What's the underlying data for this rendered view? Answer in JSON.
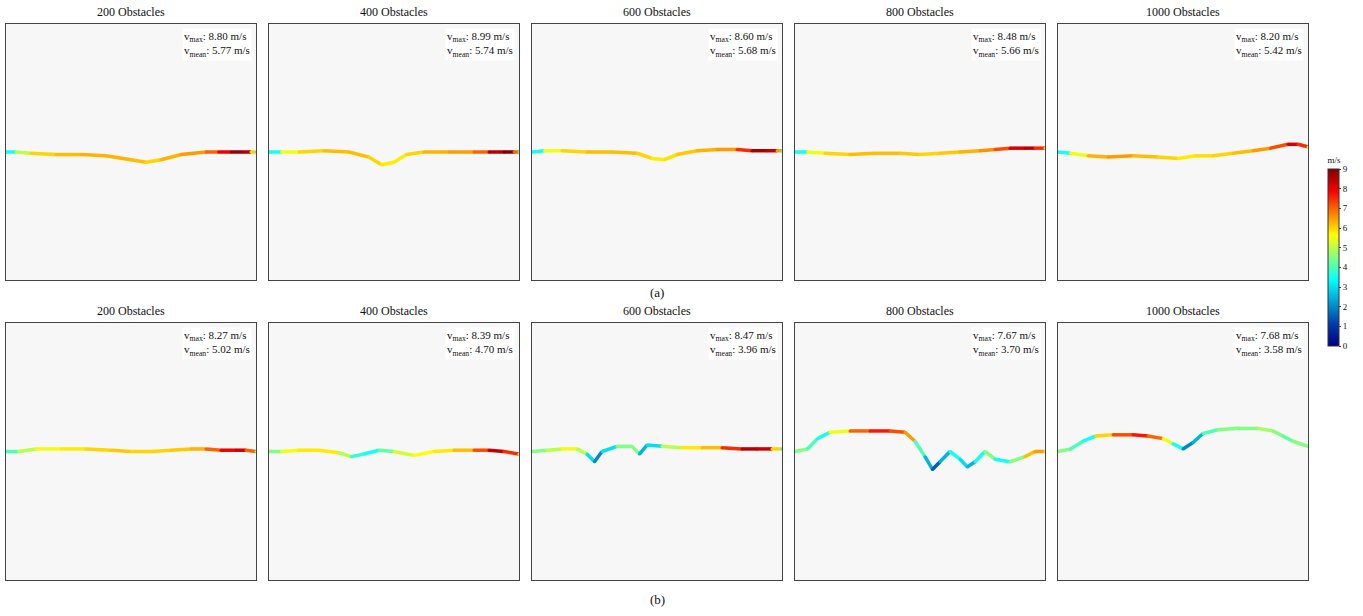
{
  "chart_data": {
    "type": "line",
    "tick_labels": false,
    "xlim": [
      0,
      100
    ],
    "ylim": [
      0,
      100
    ],
    "unit": "m/s",
    "colorbar": {
      "range": [
        0,
        9
      ],
      "ticks": [
        0,
        1,
        2,
        3,
        4,
        5,
        6,
        7,
        8,
        9
      ]
    },
    "rows": [
      {
        "label": "(a)",
        "panels": [
          {
            "title": "200 Obstacles",
            "stats": [
              {
                "symbol": "v",
                "subscript": "max",
                "value": 8.8,
                "label": "8.80"
              },
              {
                "symbol": "v",
                "subscript": "mean",
                "value": 5.77
              }
            ],
            "x": [
              0,
              4,
              10,
              20,
              30,
              40,
              50,
              56,
              62,
              70,
              80,
              85,
              90,
              95,
              98,
              100
            ],
            "y": [
              50,
              50,
              49.5,
              49,
              49,
              48.5,
              47,
              46,
              47,
              49,
              50,
              50,
              50,
              50,
              50,
              50
            ],
            "speed": [
              3.5,
              5,
              6,
              6.2,
              6.3,
              6.3,
              6.2,
              6,
              6.3,
              6.5,
              7,
              8,
              8.8,
              8.5,
              6,
              4
            ]
          },
          {
            "title": "400 Obstacles",
            "stats": [
              {
                "symbol": "v",
                "subscript": "max",
                "value": 8.99
              },
              {
                "symbol": "v",
                "subscript": "mean",
                "value": 5.74
              }
            ],
            "x": [
              0,
              5,
              12,
              22,
              32,
              40,
              45,
              50,
              55,
              62,
              72,
              82,
              88,
              94,
              98,
              100
            ],
            "y": [
              50,
              50,
              50,
              50.5,
              50,
              48,
              45,
              46,
              49,
              50,
              50,
              50,
              50,
              50,
              50,
              50
            ],
            "speed": [
              3.5,
              5.5,
              6,
              6.2,
              6.2,
              6,
              5.8,
              5.8,
              6,
              6.3,
              6.5,
              7,
              8.5,
              8.99,
              7,
              4
            ]
          },
          {
            "title": "600 Obstacles",
            "stats": [
              {
                "symbol": "v",
                "subscript": "max",
                "value": 8.6,
                "label": "8.60"
              },
              {
                "symbol": "v",
                "subscript": "mean",
                "value": 5.68
              }
            ],
            "x": [
              0,
              5,
              12,
              22,
              32,
              42,
              48,
              53,
              58,
              66,
              74,
              82,
              88,
              94,
              98,
              100
            ],
            "y": [
              50,
              50.5,
              50.5,
              50,
              50,
              49.5,
              47.5,
              47,
              49,
              50.5,
              51,
              51,
              50.5,
              50.5,
              50.5,
              50.5
            ],
            "speed": [
              3.5,
              5.5,
              6,
              6.2,
              6.2,
              6,
              5.8,
              5.9,
              6.1,
              6.3,
              6.5,
              7.5,
              8.6,
              8.4,
              6.5,
              4
            ]
          },
          {
            "title": "800 Obstacles",
            "stats": [
              {
                "symbol": "v",
                "subscript": "max",
                "value": 8.48
              },
              {
                "symbol": "v",
                "subscript": "mean",
                "value": 5.66
              }
            ],
            "x": [
              0,
              5,
              12,
              22,
              32,
              42,
              50,
              58,
              66,
              74,
              80,
              86,
              92,
              96,
              100
            ],
            "y": [
              50,
              50,
              49.5,
              49,
              49.5,
              49.5,
              49,
              49.5,
              50,
              50.5,
              51,
              51.5,
              51.5,
              51.5,
              51.5
            ],
            "speed": [
              3.5,
              5.5,
              6,
              6.2,
              6.2,
              6.1,
              6,
              6.1,
              6.3,
              6.6,
              7.2,
              8.2,
              8.48,
              7.5,
              5
            ]
          },
          {
            "title": "1000 Obstacles",
            "stats": [
              {
                "symbol": "v",
                "subscript": "max",
                "value": 8.2,
                "label": "8.20"
              },
              {
                "symbol": "v",
                "subscript": "mean",
                "value": 5.42
              }
            ],
            "x": [
              0,
              5,
              12,
              20,
              30,
              40,
              48,
              55,
              62,
              70,
              78,
              85,
              92,
              96,
              100
            ],
            "y": [
              50,
              49.5,
              48.5,
              48,
              48.5,
              48,
              47.5,
              48.5,
              48.5,
              49.5,
              50.5,
              51.5,
              53,
              53,
              52
            ],
            "speed": [
              3.5,
              5.5,
              6.3,
              6.5,
              6.2,
              6,
              5.8,
              5.9,
              6,
              6.2,
              6.5,
              7.2,
              8.2,
              7.5,
              5
            ]
          }
        ]
      },
      {
        "label": "(b)",
        "panels": [
          {
            "title": "200 Obstacles",
            "stats": [
              {
                "symbol": "v",
                "subscript": "max",
                "value": 8.27
              },
              {
                "symbol": "v",
                "subscript": "mean",
                "value": 5.02
              }
            ],
            "x": [
              0,
              5,
              12,
              22,
              32,
              42,
              50,
              58,
              66,
              74,
              80,
              86,
              92,
              96,
              100
            ],
            "y": [
              50,
              50,
              51,
              51,
              51,
              50.5,
              50,
              50,
              50.5,
              51,
              51,
              50.5,
              50.5,
              50.5,
              50
            ],
            "speed": [
              4,
              5,
              5.5,
              5.8,
              6,
              6.1,
              6,
              6,
              6.1,
              6.3,
              7,
              8,
              8.27,
              7,
              4.5
            ]
          },
          {
            "title": "400 Obstacles",
            "stats": [
              {
                "symbol": "v",
                "subscript": "max",
                "value": 8.39
              },
              {
                "symbol": "v",
                "subscript": "mean",
                "value": 4.7,
                "label": "4.70"
              }
            ],
            "x": [
              0,
              5,
              12,
              20,
              28,
              33,
              38,
              44,
              50,
              58,
              66,
              74,
              82,
              88,
              94,
              100
            ],
            "y": [
              50,
              50,
              50.5,
              50.5,
              49.5,
              48,
              49,
              50.5,
              50,
              48.5,
              50,
              50.5,
              50.5,
              50.5,
              50,
              49
            ],
            "speed": [
              4.5,
              5.5,
              5.8,
              5.8,
              5,
              3.8,
              3.5,
              4.2,
              5.2,
              5.6,
              5.8,
              6.2,
              7.2,
              8.39,
              7.5,
              5
            ]
          },
          {
            "title": "600 Obstacles",
            "stats": [
              {
                "symbol": "v",
                "subscript": "max",
                "value": 8.47
              },
              {
                "symbol": "v",
                "subscript": "mean",
                "value": 3.96
              }
            ],
            "x": [
              0,
              6,
              12,
              18,
              22,
              25,
              28,
              34,
              40,
              43,
              46,
              52,
              60,
              68,
              76,
              84,
              90,
              96,
              100
            ],
            "y": [
              50,
              50.5,
              51,
              51,
              49,
              46,
              50,
              52,
              52,
              49,
              52.5,
              52,
              51.5,
              51.5,
              51.5,
              51,
              51,
              51,
              51
            ],
            "speed": [
              4.5,
              5,
              5.5,
              5,
              3,
              2,
              3,
              4.5,
              4.5,
              2.5,
              3,
              5,
              5.8,
              6.2,
              7.5,
              8.47,
              8.3,
              6,
              3.5
            ]
          },
          {
            "title": "800 Obstacles",
            "stats": [
              {
                "symbol": "v",
                "subscript": "max",
                "value": 7.67
              },
              {
                "symbol": "v",
                "subscript": "mean",
                "value": 3.7,
                "label": "3.70"
              }
            ],
            "x": [
              0,
              5,
              9,
              14,
              22,
              30,
              38,
              44,
              48,
              52,
              55,
              58,
              62,
              66,
              69,
              72,
              76,
              80,
              86,
              92,
              96,
              100
            ],
            "y": [
              50,
              51,
              55,
              57.5,
              58,
              58,
              58,
              57.5,
              54,
              48,
              43,
              46,
              50,
              47,
              44,
              46,
              50,
              47,
              46,
              48,
              50,
              50
            ],
            "speed": [
              4.5,
              4,
              3.5,
              5.5,
              7,
              7.67,
              7.2,
              6.5,
              4,
              2.5,
              1.5,
              2.5,
              3.5,
              3,
              2.5,
              3.5,
              4.5,
              3.5,
              4.5,
              6.2,
              6.5,
              5
            ]
          },
          {
            "title": "1000 Obstacles",
            "stats": [
              {
                "symbol": "v",
                "subscript": "max",
                "value": 7.68
              },
              {
                "symbol": "v",
                "subscript": "mean",
                "value": 3.58
              }
            ],
            "x": [
              0,
              5,
              10,
              15,
              22,
              30,
              36,
              42,
              46,
              50,
              54,
              58,
              64,
              72,
              80,
              86,
              90,
              94,
              100
            ],
            "y": [
              50,
              51,
              54,
              56,
              56.5,
              56.5,
              56,
              55,
              53,
              51,
              53.5,
              57,
              58.5,
              59,
              59,
              58,
              56,
              54,
              52
            ],
            "speed": [
              4.5,
              4,
              3.5,
              6,
              7.2,
              7.68,
              7,
              5.5,
              3.5,
              2,
              2.5,
              4,
              4.5,
              4.5,
              4.8,
              4.5,
              4.2,
              4.5,
              4.5
            ]
          }
        ]
      }
    ]
  }
}
